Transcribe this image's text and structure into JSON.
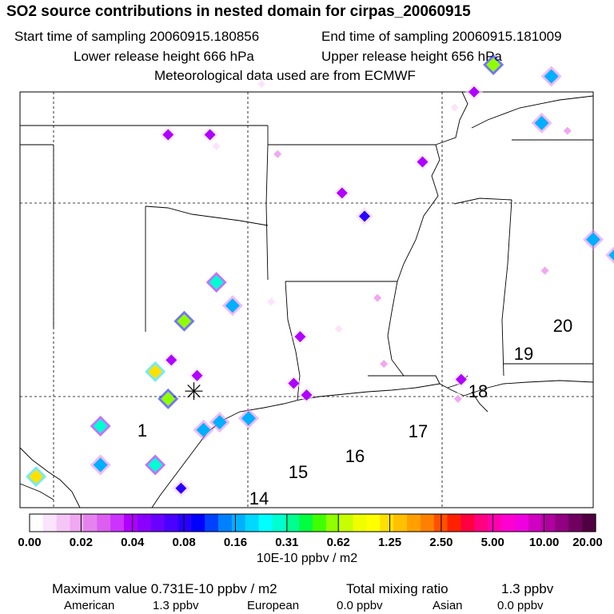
{
  "title": "SO2 source contributions in nested domain for cirpas_20060915",
  "info": {
    "start_label": "Start time of sampling 20060915.180856",
    "end_label": "End time of sampling 20060915.181009",
    "lower_label": "Lower release height  666 hPa",
    "upper_label": "Upper release height  656 hPa",
    "met_label": "Meteorological data used are from ECMWF"
  },
  "map": {
    "receptor_icon": "asterisk-icon",
    "region_labels": [
      {
        "text": "1"
      },
      {
        "text": "14"
      },
      {
        "text": "15"
      },
      {
        "text": "16"
      },
      {
        "text": "17"
      },
      {
        "text": "18"
      },
      {
        "text": "19"
      },
      {
        "text": "20"
      }
    ]
  },
  "chart_data": {
    "type": "heatmap",
    "title": "SO2 source contributions in nested domain for cirpas_20060915",
    "colorbar": {
      "ticks": [
        "0.00",
        "0.02",
        "0.04",
        "0.08",
        "0.16",
        "0.31",
        "0.62",
        "1.25",
        "2.50",
        "5.00",
        "10.00",
        "20.00"
      ],
      "colors": [
        "#ffffff",
        "#fbe4fb",
        "#f5c6f5",
        "#f0a8f0",
        "#e682ee",
        "#dc5ef0",
        "#cc33ff",
        "#b000ff",
        "#8a00ff",
        "#6a00ff",
        "#4a00ff",
        "#2800ff",
        "#0000ff",
        "#0040ff",
        "#0080ff",
        "#00b0ff",
        "#00d8ff",
        "#00ffff",
        "#00ffd0",
        "#00ff90",
        "#00ff40",
        "#40ff00",
        "#90ff00",
        "#c8ff00",
        "#f0ff00",
        "#ffff00",
        "#ffe000",
        "#ffc000",
        "#ffa000",
        "#ff8000",
        "#ff5000",
        "#ff2000",
        "#ff0040",
        "#ff0080",
        "#ff00b0",
        "#ff00d0",
        "#f000e0",
        "#d000c0",
        "#b000a0",
        "#900080",
        "#700060",
        "#500040"
      ],
      "units": "10E-10 ppbv / m2"
    },
    "sources": [
      {
        "lon": -97.9,
        "lat": 36.4,
        "value": 0.04
      },
      {
        "lon": -96.6,
        "lat": 36.4,
        "value": 0.04
      },
      {
        "lon": -96.4,
        "lat": 36.1,
        "value": 0.01
      },
      {
        "lon": -95.0,
        "lat": 37.7,
        "value": 0.01
      },
      {
        "lon": -94.5,
        "lat": 35.9,
        "value": 0.02
      },
      {
        "lon": -92.5,
        "lat": 34.9,
        "value": 0.04
      },
      {
        "lon": -91.8,
        "lat": 34.3,
        "value": 0.08
      },
      {
        "lon": -90.0,
        "lat": 35.7,
        "value": 0.04
      },
      {
        "lon": -89.0,
        "lat": 37.1,
        "value": 0.01
      },
      {
        "lon": -88.4,
        "lat": 37.5,
        "value": 0.04
      },
      {
        "lon": -87.8,
        "lat": 38.2,
        "value": 0.62
      },
      {
        "lon": -86.0,
        "lat": 37.9,
        "value": 0.16
      },
      {
        "lon": -86.3,
        "lat": 36.7,
        "value": 0.16
      },
      {
        "lon": -85.5,
        "lat": 36.5,
        "value": 0.02
      },
      {
        "lon": -84.7,
        "lat": 33.7,
        "value": 0.16
      },
      {
        "lon": -84.0,
        "lat": 33.3,
        "value": 0.16
      },
      {
        "lon": -96.4,
        "lat": 32.6,
        "value": 0.31
      },
      {
        "lon": -95.9,
        "lat": 32.0,
        "value": 0.16
      },
      {
        "lon": -94.7,
        "lat": 32.1,
        "value": 0.01
      },
      {
        "lon": -97.4,
        "lat": 31.6,
        "value": 0.62
      },
      {
        "lon": -97.8,
        "lat": 30.6,
        "value": 0.04
      },
      {
        "lon": -98.3,
        "lat": 30.3,
        "value": 1.25
      },
      {
        "lon": -97.9,
        "lat": 29.6,
        "value": 0.62
      },
      {
        "lon": -97.0,
        "lat": 30.2,
        "value": 0.04
      },
      {
        "lon": -100.0,
        "lat": 28.9,
        "value": 0.31
      },
      {
        "lon": -100.0,
        "lat": 27.9,
        "value": 0.16
      },
      {
        "lon": -98.3,
        "lat": 27.9,
        "value": 0.31
      },
      {
        "lon": -102.0,
        "lat": 27.6,
        "value": 1.25
      },
      {
        "lon": -97.5,
        "lat": 27.3,
        "value": 0.08
      },
      {
        "lon": -96.8,
        "lat": 28.8,
        "value": 0.16
      },
      {
        "lon": -96.3,
        "lat": 29.0,
        "value": 0.16
      },
      {
        "lon": -95.4,
        "lat": 29.1,
        "value": 0.16
      },
      {
        "lon": -94.0,
        "lat": 30.0,
        "value": 0.04
      },
      {
        "lon": -93.8,
        "lat": 31.2,
        "value": 0.04
      },
      {
        "lon": -92.6,
        "lat": 31.4,
        "value": 0.01
      },
      {
        "lon": -91.2,
        "lat": 30.5,
        "value": 0.02
      },
      {
        "lon": -91.4,
        "lat": 32.2,
        "value": 0.02
      },
      {
        "lon": -93.6,
        "lat": 29.7,
        "value": 0.04
      },
      {
        "lon": -88.8,
        "lat": 30.1,
        "value": 0.04
      },
      {
        "lon": -88.9,
        "lat": 29.6,
        "value": 0.02
      },
      {
        "lon": -86.2,
        "lat": 32.9,
        "value": 0.02
      }
    ],
    "overlay": {
      "receptor": {
        "lon": -97.1,
        "lat": 29.8
      },
      "gridlines": {
        "lons": [
          -101.0,
          -97.0,
          -89.0
        ],
        "lats": [
          34.0,
          30.0
        ]
      }
    }
  },
  "legend_ticks_visible": true,
  "units_label": "10E-10 ppbv / m2",
  "footer": {
    "max_label": "Maximum value  0.731E-10 ppbv / m2",
    "total_label": "Total mixing ratio",
    "total_value": "1.3 ppbv",
    "american_label": "American",
    "american_value": "1.3 ppbv",
    "european_label": "European",
    "european_value": "0.0 ppbv",
    "asian_label": "Asian",
    "asian_value": "0.0 ppbv"
  }
}
